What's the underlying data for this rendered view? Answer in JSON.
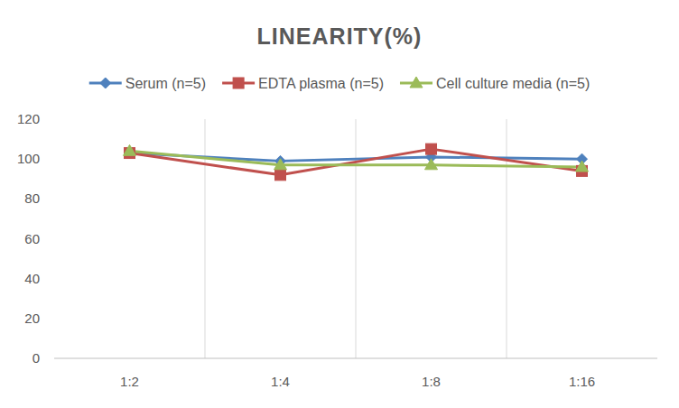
{
  "chart_data": {
    "type": "line",
    "title": "LINEARITY(%)",
    "categories": [
      "1:2",
      "1:4",
      "1:8",
      "1:16"
    ],
    "series": [
      {
        "name": "Serum (n=5)",
        "color": "#4f81bd",
        "marker": "diamond",
        "values": [
          103,
          99,
          101,
          100
        ]
      },
      {
        "name": "EDTA plasma (n=5)",
        "color": "#c0504d",
        "marker": "square",
        "values": [
          103,
          92,
          105,
          94
        ]
      },
      {
        "name": "Cell culture media (n=5)",
        "color": "#9bbb59",
        "marker": "triangle",
        "values": [
          104,
          97,
          97,
          96
        ]
      }
    ],
    "ylim": [
      0,
      120
    ],
    "yticks": [
      0,
      20,
      40,
      60,
      80,
      100,
      120
    ],
    "grid": true,
    "legend": "top"
  }
}
